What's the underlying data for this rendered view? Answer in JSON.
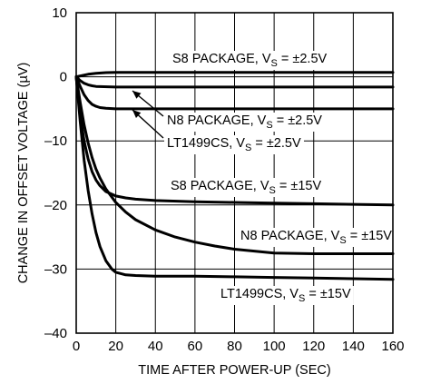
{
  "chart_data": {
    "type": "line",
    "xlabel": "TIME AFTER POWER-UP (SEC)",
    "ylabel": "CHANGE IN OFFSET VOLTAGE (µV)",
    "xlim": [
      0,
      160
    ],
    "ylim": [
      -40,
      10
    ],
    "x_ticks": [
      "0",
      "20",
      "40",
      "60",
      "80",
      "100",
      "120",
      "140",
      "160"
    ],
    "y_ticks": [
      "10",
      "0",
      "–10",
      "–20",
      "–30",
      "–40"
    ],
    "grid": true,
    "series": [
      {
        "name": "S8 PACKAGE, VS = ±2.5V",
        "x": [
          0,
          3,
          6,
          10,
          15,
          20,
          30,
          50,
          80,
          120,
          160
        ],
        "y": [
          0,
          0.2,
          0.4,
          0.55,
          0.65,
          0.7,
          0.7,
          0.7,
          0.7,
          0.7,
          0.7
        ]
      },
      {
        "name": "N8 PACKAGE, VS = ±2.5V",
        "x": [
          0,
          2,
          4,
          6,
          8,
          10,
          14,
          20,
          40,
          80,
          160
        ],
        "y": [
          0,
          -0.6,
          -1.0,
          -1.25,
          -1.4,
          -1.5,
          -1.55,
          -1.6,
          -1.6,
          -1.6,
          -1.6
        ]
      },
      {
        "name": "LT1499CS, VS = ±2.5V",
        "x": [
          0,
          2,
          4,
          6,
          8,
          10,
          12,
          15,
          20,
          30,
          60,
          100,
          160
        ],
        "y": [
          0,
          -1.5,
          -2.8,
          -3.7,
          -4.3,
          -4.6,
          -4.8,
          -4.9,
          -5.0,
          -5.0,
          -5.0,
          -5.0,
          -5.0
        ]
      },
      {
        "name": "S8 PACKAGE, VS = ±15V",
        "x": [
          0,
          2,
          4,
          6,
          8,
          10,
          12,
          15,
          20,
          25,
          30,
          40,
          60,
          80,
          100,
          120,
          140,
          160
        ],
        "y": [
          0,
          -6,
          -10,
          -12.8,
          -14.8,
          -16.1,
          -17.0,
          -17.9,
          -18.6,
          -18.9,
          -19.1,
          -19.3,
          -19.5,
          -19.6,
          -19.7,
          -19.8,
          -19.9,
          -20.0
        ]
      },
      {
        "name": "N8 PACKAGE, VS = ±15V",
        "x": [
          0,
          2,
          4,
          6,
          8,
          10,
          12,
          15,
          20,
          25,
          30,
          40,
          50,
          60,
          70,
          80,
          90,
          100,
          120,
          140,
          160
        ],
        "y": [
          0,
          -4,
          -7.5,
          -10.3,
          -12.6,
          -14.4,
          -15.8,
          -17.5,
          -19.6,
          -21.1,
          -22.3,
          -23.9,
          -25.0,
          -25.8,
          -26.4,
          -26.9,
          -27.2,
          -27.5,
          -27.6,
          -27.6,
          -27.6
        ]
      },
      {
        "name": "LT1499CS, VS = ±15V",
        "x": [
          0,
          2,
          4,
          6,
          8,
          10,
          12,
          15,
          18,
          20,
          25,
          30,
          40,
          60,
          80,
          100,
          120,
          140,
          160
        ],
        "y": [
          0,
          -7,
          -13,
          -17.7,
          -21.4,
          -24.3,
          -26.5,
          -28.7,
          -30.0,
          -30.5,
          -30.9,
          -31.0,
          -31.1,
          -31.1,
          -31.2,
          -31.3,
          -31.4,
          -31.5,
          -31.6
        ]
      }
    ],
    "annotations": [
      {
        "text": "S8 PACKAGE, V",
        "sub": "S",
        "rest": " = ±2.5V",
        "series": 0
      },
      {
        "text": "N8 PACKAGE, V",
        "sub": "S",
        "rest": " = ±2.5V",
        "series": 1
      },
      {
        "text": "LT1499CS, V",
        "sub": "S",
        "rest": " = ±2.5V",
        "series": 2
      },
      {
        "text": "S8 PACKAGE, V",
        "sub": "S",
        "rest": " = ±15V",
        "series": 3
      },
      {
        "text": "N8 PACKAGE, V",
        "sub": "S",
        "rest": " = ±15V",
        "series": 4
      },
      {
        "text": "LT1499CS, V",
        "sub": "S",
        "rest": " = ±15V",
        "series": 5
      }
    ]
  }
}
